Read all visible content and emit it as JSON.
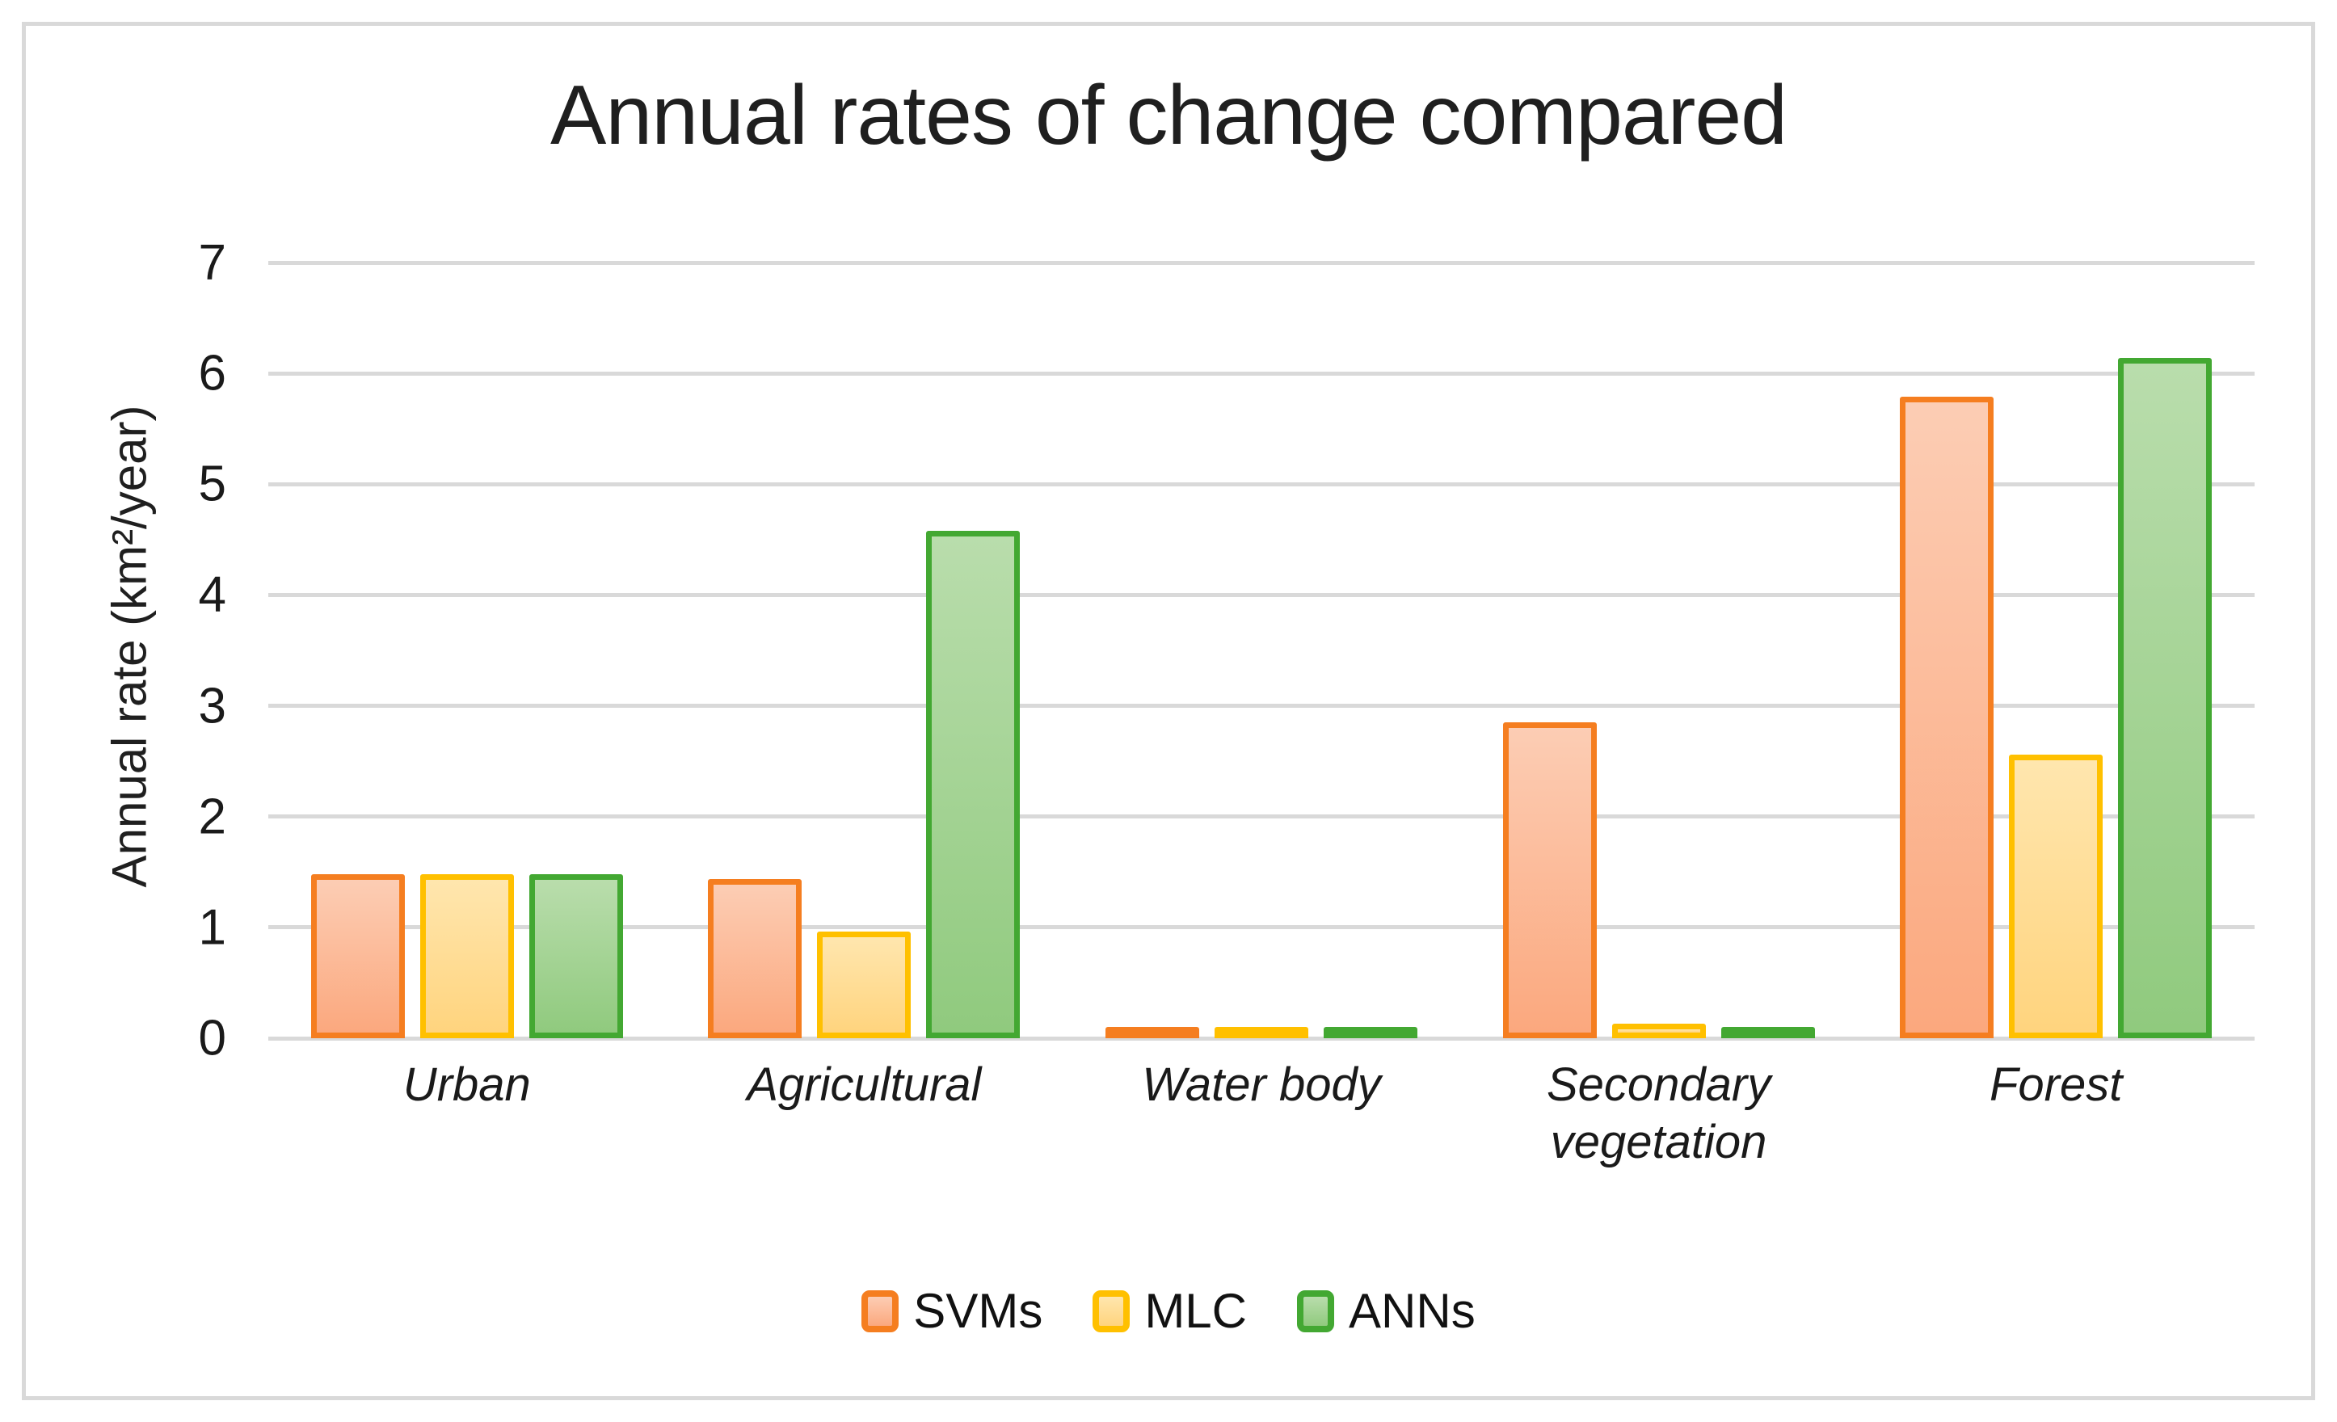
{
  "title": "Annual rates of change compared",
  "chart_data": {
    "type": "bar",
    "title": "Annual rates of change compared",
    "xlabel": "",
    "ylabel": "Annual rate (km²/year)",
    "ylim": [
      0,
      7
    ],
    "yticks": [
      0,
      1,
      2,
      3,
      4,
      5,
      6,
      7
    ],
    "grid": true,
    "legend_position": "bottom-center",
    "categories": [
      "Urban",
      "Agricultural",
      "Water body",
      "Secondary vegetation",
      "Forest"
    ],
    "series": [
      {
        "name": "SVMs",
        "values": [
          1.48,
          1.44,
          0.06,
          2.85,
          5.79
        ],
        "border_color": "#f57e20",
        "fill_top": "#fccdb4",
        "fill_bottom": "#fba87e"
      },
      {
        "name": "MLC",
        "values": [
          1.48,
          0.96,
          0.06,
          0.13,
          2.56
        ],
        "border_color": "#ffc000",
        "fill_top": "#ffe6ae",
        "fill_bottom": "#ffd47e"
      },
      {
        "name": "ANNs",
        "values": [
          1.48,
          4.58,
          0.05,
          0.09,
          6.14
        ],
        "border_color": "#43a832",
        "fill_top": "#b9ddac",
        "fill_bottom": "#90ca7e"
      }
    ]
  },
  "colors": {
    "gridline": "#d9d9d9",
    "frame_border": "#d9d9d9",
    "text": "#1f1f1f",
    "background": "#ffffff"
  }
}
